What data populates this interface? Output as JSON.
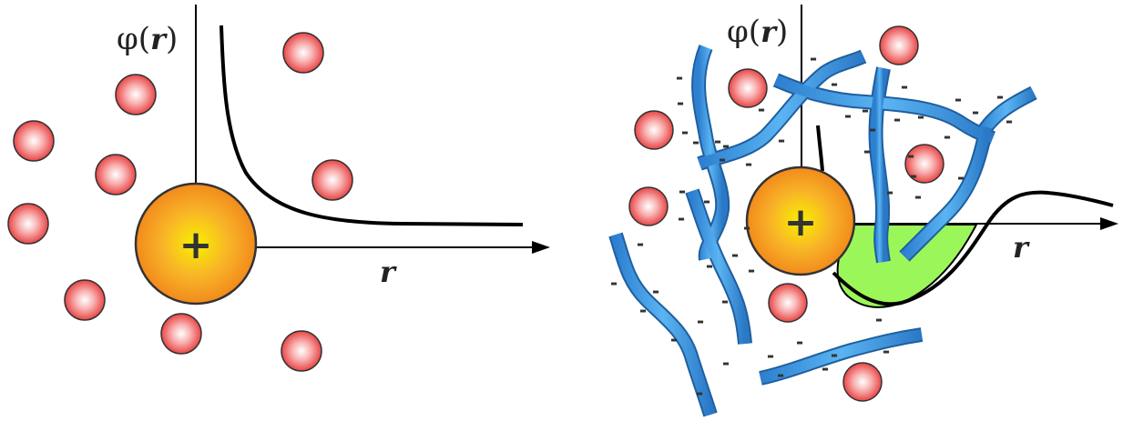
{
  "panels": {
    "left": {
      "phi_label": "φ(",
      "phi_var": "r",
      "phi_close": ")",
      "r_label": "r",
      "center_charge": "+"
    },
    "right": {
      "phi_label": "φ(",
      "phi_var": "r",
      "phi_close": ")",
      "r_label": "r",
      "center_charge": "+",
      "negative_sign": "-"
    }
  },
  "colors": {
    "cation_center": "#f6a623",
    "cation_edge": "#333333",
    "counter_ion": "#ef5a5a",
    "polymer": "#3d97e0",
    "well_fill": "#99f75a",
    "axis": "#000000"
  }
}
